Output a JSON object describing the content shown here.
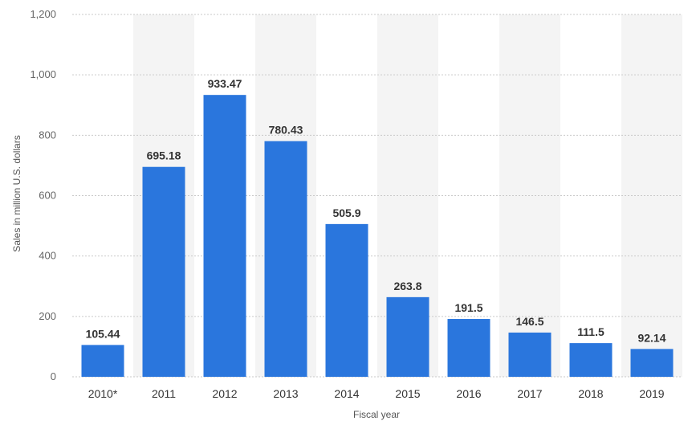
{
  "chart_data": {
    "type": "bar",
    "categories": [
      "2010*",
      "2011",
      "2012",
      "2013",
      "2014",
      "2015",
      "2016",
      "2017",
      "2018",
      "2019"
    ],
    "values": [
      105.44,
      695.18,
      933.47,
      780.43,
      505.9,
      263.8,
      191.5,
      146.5,
      111.5,
      92.14
    ],
    "value_labels": [
      "105.44",
      "695.18",
      "933.47",
      "780.43",
      "505.9",
      "263.8",
      "191.5",
      "146.5",
      "111.5",
      "92.14"
    ],
    "title": "",
    "xlabel": "Fiscal year",
    "ylabel": "Sales in million U.S. dollars",
    "ylim": [
      0,
      1200
    ],
    "yticks": [
      0,
      200,
      400,
      600,
      800,
      1000,
      1200
    ],
    "ytick_labels": [
      "0",
      "200",
      "400",
      "600",
      "800",
      "1,000",
      "1,200"
    ],
    "grid": true,
    "legend": "none",
    "colors": {
      "bar": "#2a76dd",
      "band": "#f4f4f4",
      "grid": "#c9c9c9"
    }
  }
}
